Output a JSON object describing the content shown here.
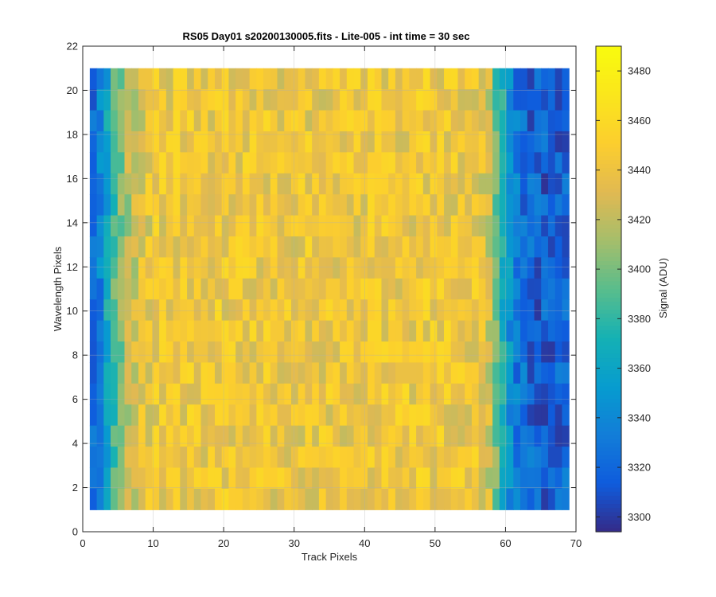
{
  "chart_data": {
    "type": "heatmap",
    "title": "RS05 Day01  s20200130005.fits - Lite-005 - int time = 30 sec",
    "xlabel": "Track Pixels",
    "ylabel": "Wavelength Pixels",
    "colorbar_label": "Signal (ADU)",
    "colormap": "parula",
    "xlim": [
      0,
      70
    ],
    "ylim": [
      0,
      22
    ],
    "xticks": [
      0,
      10,
      20,
      30,
      40,
      50,
      60,
      70
    ],
    "yticks": [
      0,
      2,
      4,
      6,
      8,
      10,
      12,
      14,
      16,
      18,
      20,
      22
    ],
    "clim": [
      3294,
      3490
    ],
    "colorbar_ticks": [
      3300,
      3320,
      3340,
      3360,
      3380,
      3400,
      3420,
      3440,
      3460,
      3480
    ],
    "track_pixel_range": [
      1,
      69
    ],
    "wavelength_pixel_range": [
      1,
      21
    ],
    "track_profile": {
      "x": [
        1,
        2,
        3,
        4,
        5,
        6,
        8,
        10,
        20,
        30,
        40,
        50,
        56,
        58,
        59,
        60,
        61,
        62,
        64,
        66,
        68,
        69
      ],
      "signal": [
        3322,
        3336,
        3362,
        3388,
        3405,
        3418,
        3432,
        3441,
        3442,
        3440,
        3441,
        3443,
        3440,
        3425,
        3395,
        3368,
        3346,
        3330,
        3320,
        3316,
        3318,
        3320
      ]
    },
    "grid": true
  }
}
